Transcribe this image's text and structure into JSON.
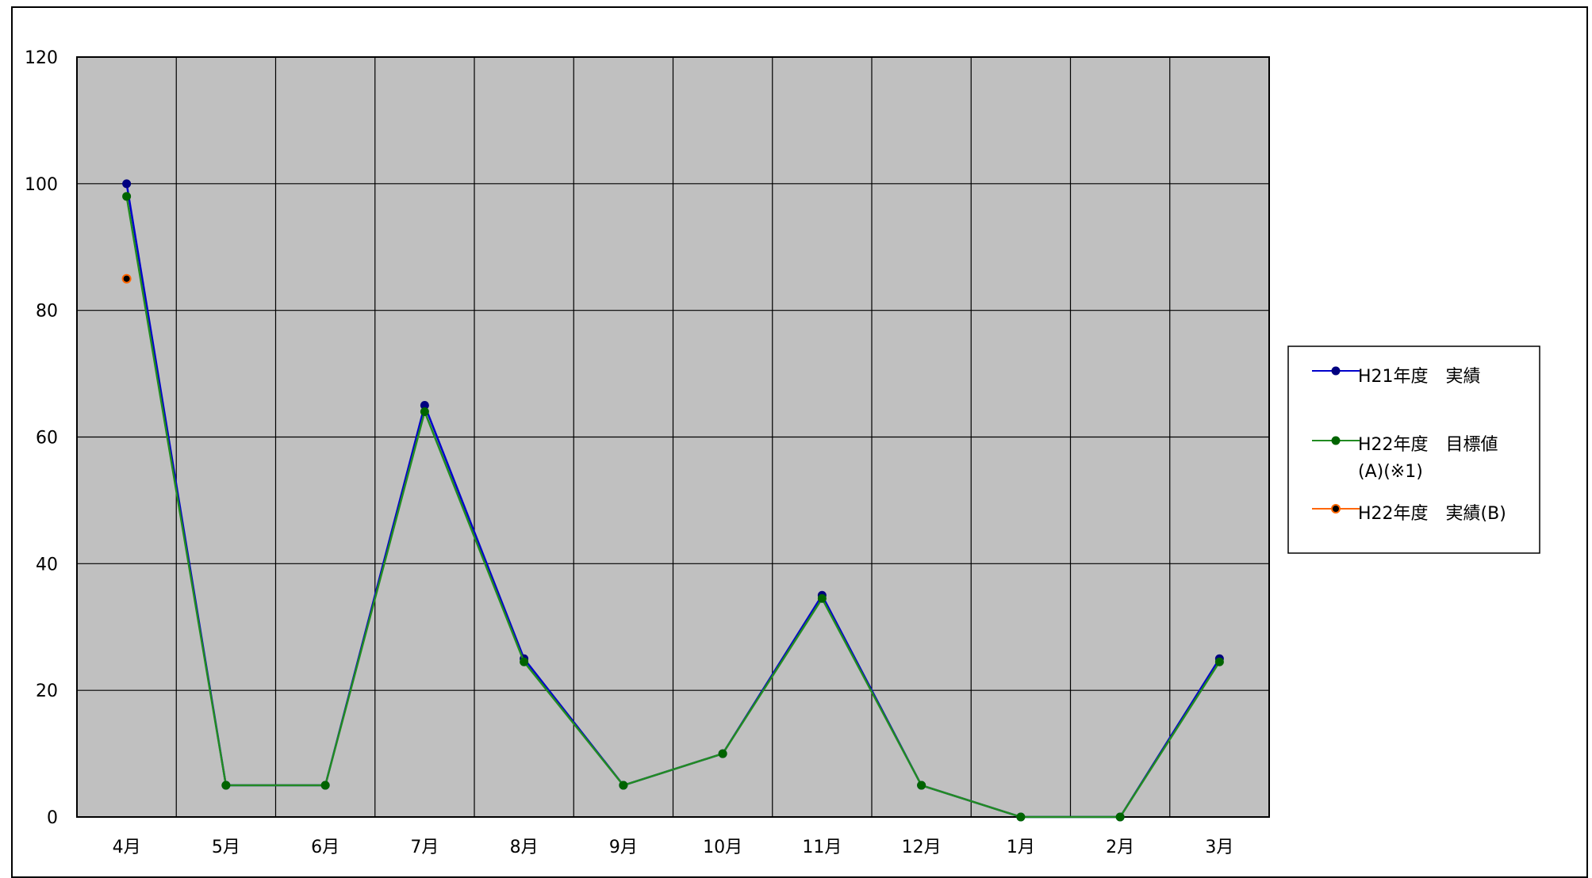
{
  "chart_data": {
    "type": "line",
    "categories": [
      "4月",
      "5月",
      "6月",
      "7月",
      "8月",
      "9月",
      "10月",
      "11月",
      "12月",
      "1月",
      "2月",
      "3月"
    ],
    "ylim": [
      0,
      120
    ],
    "yticks": [
      "0",
      "20",
      "40",
      "60",
      "80",
      "100",
      "120"
    ],
    "ytick_values": [
      0,
      20,
      40,
      60,
      80,
      100,
      120
    ],
    "grid": true,
    "legend_position": "right",
    "plot_background": "#c0c0c0",
    "series": [
      {
        "name": "H21年度　実績",
        "color": "#0000cc",
        "marker_color": "#000080",
        "values": [
          100,
          5,
          5,
          65,
          25,
          5,
          10,
          35,
          5,
          0,
          0,
          25
        ]
      },
      {
        "name": "H22年度　目標値",
        "name_line2": "(A)(※1)",
        "color": "#228b22",
        "marker_color": "#006400",
        "values": [
          98,
          5,
          5,
          64,
          24.5,
          5,
          10,
          34.5,
          5,
          0,
          0,
          24.5
        ]
      },
      {
        "name": "H22年度　実績(B)",
        "color": "#ff6600",
        "marker_color": "#000000",
        "values": [
          85,
          null,
          null,
          null,
          null,
          null,
          null,
          null,
          null,
          null,
          null,
          null
        ]
      }
    ]
  }
}
